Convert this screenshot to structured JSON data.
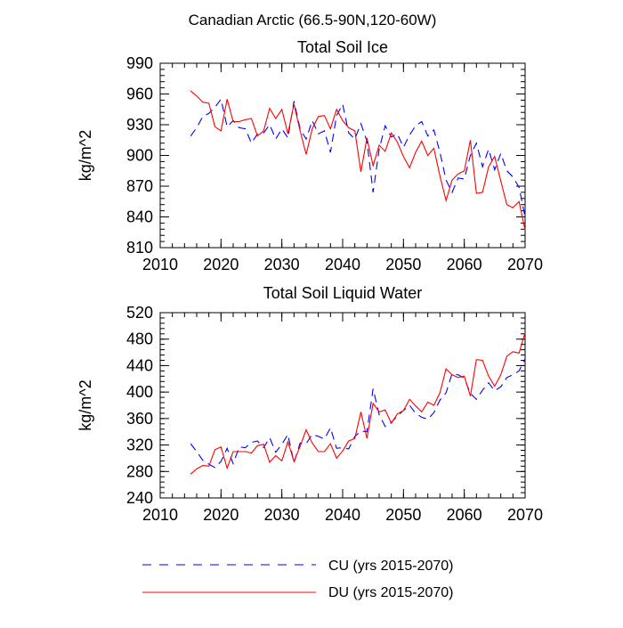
{
  "figure_title": "Canadian Arctic (66.5-90N,120-60W)",
  "legend": {
    "items": [
      {
        "label": "CU (yrs 2015-2070)",
        "color": "#0000ff",
        "style": "dashed"
      },
      {
        "label": "DU (yrs 2015-2070)",
        "color": "#ff0000",
        "style": "solid"
      }
    ]
  },
  "chart_data": [
    {
      "type": "line",
      "title": "Total Soil Ice",
      "xlabel": "",
      "ylabel": "kg/m^2",
      "xlim": [
        2010,
        2070
      ],
      "ylim": [
        810,
        990
      ],
      "xticks": [
        2010,
        2020,
        2030,
        2040,
        2050,
        2060,
        2070
      ],
      "yticks": [
        810,
        840,
        870,
        900,
        930,
        960,
        990
      ],
      "x": [
        2015,
        2016,
        2017,
        2018,
        2019,
        2020,
        2021,
        2022,
        2023,
        2024,
        2025,
        2026,
        2027,
        2028,
        2029,
        2030,
        2031,
        2032,
        2033,
        2034,
        2035,
        2036,
        2037,
        2038,
        2039,
        2040,
        2041,
        2042,
        2043,
        2044,
        2045,
        2046,
        2047,
        2048,
        2049,
        2050,
        2051,
        2052,
        2053,
        2054,
        2055,
        2056,
        2057,
        2058,
        2059,
        2060,
        2061,
        2062,
        2063,
        2064,
        2065,
        2066,
        2067,
        2068,
        2069,
        2070
      ],
      "series": [
        {
          "name": "CU (yrs 2015-2070)",
          "color": "#0000ff",
          "dash": "dashed",
          "values": [
            919,
            927,
            938,
            941,
            947,
            955,
            928,
            934,
            927,
            926,
            912,
            921,
            922,
            930,
            916,
            926,
            917,
            953,
            926,
            916,
            934,
            921,
            924,
            903,
            939,
            950,
            922,
            916,
            931,
            914,
            864,
            906,
            929,
            918,
            921,
            908,
            920,
            929,
            933,
            919,
            925,
            903,
            876,
            864,
            878,
            877,
            900,
            912,
            889,
            906,
            886,
            902,
            885,
            879,
            869,
            840
          ]
        },
        {
          "name": "DU (yrs 2015-2070)",
          "color": "#ff0000",
          "dash": "solid",
          "values": [
            963,
            958,
            952,
            951,
            928,
            924,
            955,
            933,
            933,
            935,
            936,
            919,
            924,
            946,
            936,
            945,
            921,
            950,
            924,
            901,
            926,
            938,
            939,
            926,
            945,
            934,
            927,
            924,
            884,
            917,
            890,
            910,
            904,
            922,
            913,
            899,
            888,
            903,
            914,
            900,
            907,
            880,
            856,
            876,
            882,
            885,
            915,
            863,
            864,
            889,
            899,
            875,
            852,
            849,
            855,
            827
          ]
        }
      ]
    },
    {
      "type": "line",
      "title": "Total Soil Liquid Water",
      "xlabel": "",
      "ylabel": "kg/m^2",
      "xlim": [
        2010,
        2070
      ],
      "ylim": [
        240,
        520
      ],
      "xticks": [
        2010,
        2020,
        2030,
        2040,
        2050,
        2060,
        2070
      ],
      "yticks": [
        240,
        280,
        320,
        360,
        400,
        440,
        480,
        520
      ],
      "x": [
        2015,
        2016,
        2017,
        2018,
        2019,
        2020,
        2021,
        2022,
        2023,
        2024,
        2025,
        2026,
        2027,
        2028,
        2029,
        2030,
        2031,
        2032,
        2033,
        2034,
        2035,
        2036,
        2037,
        2038,
        2039,
        2040,
        2041,
        2042,
        2043,
        2044,
        2045,
        2046,
        2047,
        2048,
        2049,
        2050,
        2051,
        2052,
        2053,
        2054,
        2055,
        2056,
        2057,
        2058,
        2059,
        2060,
        2061,
        2062,
        2063,
        2064,
        2065,
        2066,
        2067,
        2068,
        2069,
        2070
      ],
      "series": [
        {
          "name": "CU (yrs 2015-2070)",
          "color": "#0000ff",
          "dash": "dashed",
          "values": [
            322,
            310,
            297,
            291,
            286,
            295,
            315,
            292,
            317,
            316,
            324,
            326,
            316,
            331,
            309,
            321,
            336,
            293,
            323,
            322,
            336,
            333,
            329,
            346,
            315,
            316,
            314,
            333,
            341,
            340,
            405,
            366,
            348,
            354,
            364,
            372,
            380,
            368,
            362,
            359,
            369,
            388,
            399,
            428,
            426,
            421,
            398,
            389,
            403,
            414,
            402,
            408,
            422,
            426,
            432,
            450
          ]
        },
        {
          "name": "DU (yrs 2015-2070)",
          "color": "#ff0000",
          "dash": "solid",
          "values": [
            276,
            284,
            289,
            288,
            313,
            317,
            285,
            310,
            310,
            310,
            308,
            319,
            321,
            294,
            304,
            296,
            325,
            295,
            318,
            343,
            323,
            310,
            310,
            322,
            300,
            311,
            326,
            330,
            370,
            330,
            383,
            370,
            373,
            353,
            367,
            372,
            389,
            379,
            370,
            385,
            380,
            399,
            435,
            426,
            422,
            424,
            394,
            449,
            448,
            424,
            409,
            426,
            454,
            461,
            459,
            490
          ]
        }
      ]
    }
  ]
}
